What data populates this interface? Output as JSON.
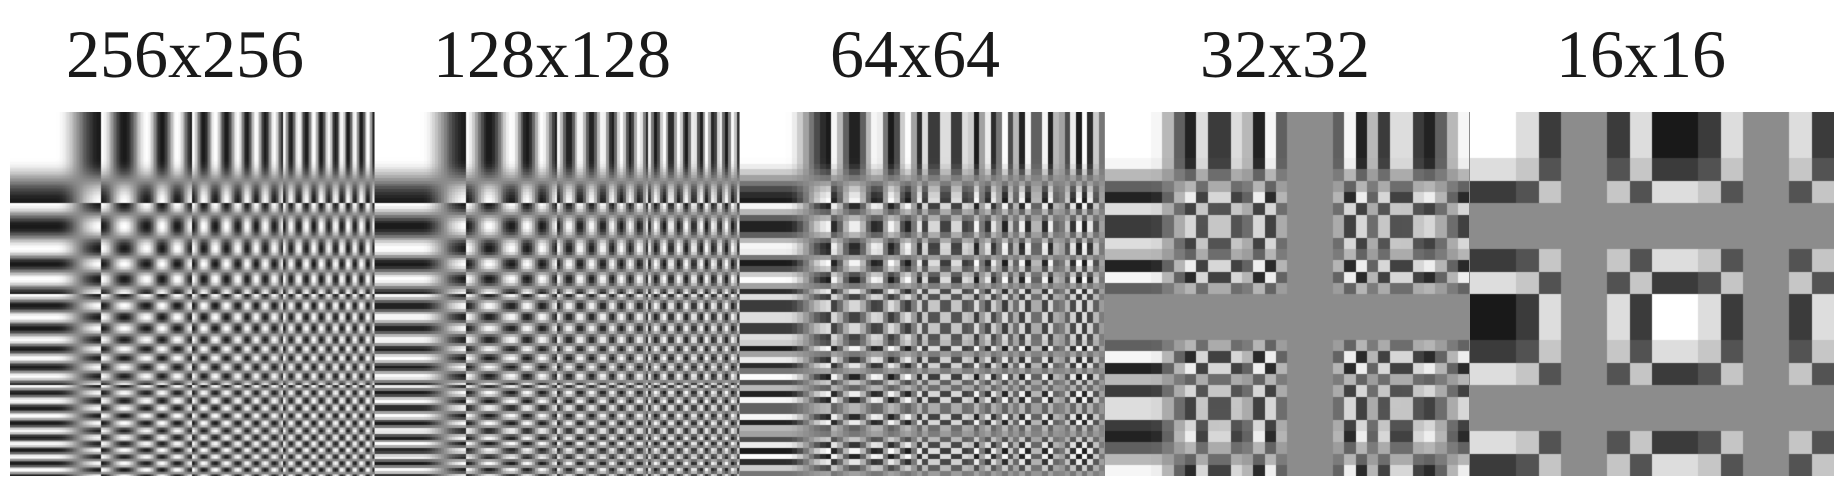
{
  "panels": [
    {
      "label": "256x256",
      "resolution": 256
    },
    {
      "label": "128x128",
      "resolution": 128
    },
    {
      "label": "64x64",
      "resolution": 64
    },
    {
      "label": "32x32",
      "resolution": 32
    },
    {
      "label": "16x16",
      "resolution": 16
    }
  ],
  "basis_grid": {
    "functions_per_axis": 8
  },
  "colors": {
    "background": "#ffffff",
    "strip_gray": "#8c8c8c",
    "label_text": "#1a1a1a"
  }
}
